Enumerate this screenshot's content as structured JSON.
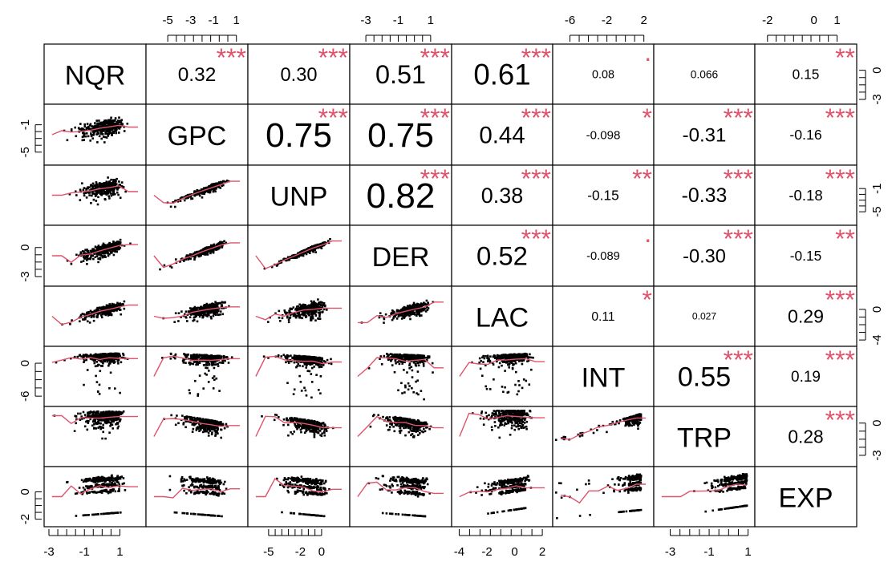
{
  "chart_data": {
    "type": "scatter-matrix",
    "variables": [
      "NQR",
      "GPC",
      "UNP",
      "DER",
      "LAC",
      "INT",
      "TRP",
      "EXP"
    ],
    "axis_ranges": {
      "NQR": [
        -3,
        2.2
      ],
      "GPC": [
        -6.2,
        1.3
      ],
      "UNP": [
        -6.5,
        2.2
      ],
      "DER": [
        -3.5,
        1.8
      ],
      "LAC": [
        -4.2,
        2.4
      ],
      "INT": [
        -7,
        2.2
      ],
      "TRP": [
        -3.6,
        1.1
      ],
      "EXP": [
        -2.2,
        1.5
      ]
    },
    "ticks": {
      "top": {
        "GPC": [
          "-5",
          "-3",
          "-1",
          "1"
        ],
        "DER": [
          "-3",
          "-1",
          "1"
        ],
        "INT": [
          "-6",
          "-2",
          "2"
        ],
        "EXP": [
          "-2",
          "0",
          "1"
        ]
      },
      "bottom": {
        "NQR": [
          "-3",
          "-1",
          "1"
        ],
        "UNP": [
          "-5",
          "-2",
          "0"
        ],
        "LAC": [
          "-4",
          "-2",
          "0",
          "2"
        ],
        "TRP": [
          "-3",
          "-1",
          "1"
        ]
      },
      "left": {
        "GPC": [
          "-1",
          "-5"
        ],
        "DER": [
          "0",
          "-3"
        ],
        "INT": [
          "0",
          "-6"
        ],
        "EXP": [
          "0",
          "-2"
        ]
      },
      "right": {
        "NQR": [
          "0",
          "-3"
        ],
        "UNP": [
          "-1",
          "-5"
        ],
        "LAC": [
          "0",
          "-4"
        ],
        "TRP": [
          "0",
          "-3"
        ]
      }
    },
    "correlations": [
      {
        "row": 0,
        "col": 1,
        "r": "0.32",
        "stars": "***"
      },
      {
        "row": 0,
        "col": 2,
        "r": "0.30",
        "stars": "***"
      },
      {
        "row": 0,
        "col": 3,
        "r": "0.51",
        "stars": "***"
      },
      {
        "row": 0,
        "col": 4,
        "r": "0.61",
        "stars": "***"
      },
      {
        "row": 0,
        "col": 5,
        "r": "0.08",
        "stars": "·"
      },
      {
        "row": 0,
        "col": 6,
        "r": "0.066",
        "stars": ""
      },
      {
        "row": 0,
        "col": 7,
        "r": "0.15",
        "stars": "**"
      },
      {
        "row": 1,
        "col": 2,
        "r": "0.75",
        "stars": "***"
      },
      {
        "row": 1,
        "col": 3,
        "r": "0.75",
        "stars": "***"
      },
      {
        "row": 1,
        "col": 4,
        "r": "0.44",
        "stars": "***"
      },
      {
        "row": 1,
        "col": 5,
        "r": "-0.098",
        "stars": "*"
      },
      {
        "row": 1,
        "col": 6,
        "r": "-0.31",
        "stars": "***"
      },
      {
        "row": 1,
        "col": 7,
        "r": "-0.16",
        "stars": "***"
      },
      {
        "row": 2,
        "col": 3,
        "r": "0.82",
        "stars": "***"
      },
      {
        "row": 2,
        "col": 4,
        "r": "0.38",
        "stars": "***"
      },
      {
        "row": 2,
        "col": 5,
        "r": "-0.15",
        "stars": "**"
      },
      {
        "row": 2,
        "col": 6,
        "r": "-0.33",
        "stars": "***"
      },
      {
        "row": 2,
        "col": 7,
        "r": "-0.18",
        "stars": "***"
      },
      {
        "row": 3,
        "col": 4,
        "r": "0.52",
        "stars": "***"
      },
      {
        "row": 3,
        "col": 5,
        "r": "-0.089",
        "stars": "·"
      },
      {
        "row": 3,
        "col": 6,
        "r": "-0.30",
        "stars": "***"
      },
      {
        "row": 3,
        "col": 7,
        "r": "-0.15",
        "stars": "**"
      },
      {
        "row": 4,
        "col": 5,
        "r": "0.11",
        "stars": "*"
      },
      {
        "row": 4,
        "col": 6,
        "r": "0.027",
        "stars": ""
      },
      {
        "row": 4,
        "col": 7,
        "r": "0.29",
        "stars": "***"
      },
      {
        "row": 5,
        "col": 6,
        "r": "0.55",
        "stars": "***"
      },
      {
        "row": 5,
        "col": 7,
        "r": "0.19",
        "stars": "***"
      },
      {
        "row": 6,
        "col": 7,
        "r": "0.28",
        "stars": "***"
      }
    ],
    "colors": {
      "stars": "#df536b",
      "smoother": "#df536b",
      "points": "#000000",
      "frame": "#000000"
    }
  }
}
